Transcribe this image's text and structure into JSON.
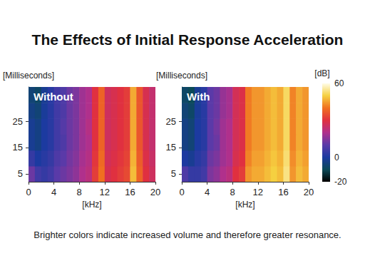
{
  "title": "The Effects of Initial Response Acceleration",
  "caption": "Brighter colors indicate increased volume and therefore greater resonance.",
  "colorbar": {
    "label": "[dB]",
    "range": [
      -20,
      60
    ],
    "ticks": [
      -20,
      0,
      60
    ]
  },
  "chart_data": [
    {
      "type": "heatmap",
      "annotation": "Without",
      "xlabel": "[kHz]",
      "ylabel": "[Milliseconds]",
      "xlim": [
        0,
        20
      ],
      "xticks": [
        0,
        4,
        8,
        12,
        16,
        20
      ],
      "ylim": [
        2,
        38
      ],
      "yticks": [
        5,
        15,
        25
      ],
      "x_edges": [
        0,
        1,
        2,
        3,
        4,
        5,
        6,
        7,
        8,
        9,
        10,
        11,
        12,
        13,
        14,
        15,
        16,
        17,
        18,
        19,
        20
      ],
      "y_edges": [
        2,
        8,
        14,
        20,
        26,
        32,
        38
      ],
      "cells": [
        [
          12,
          6,
          4,
          6,
          10,
          12,
          14,
          16,
          20,
          22,
          32,
          40,
          28,
          30,
          32,
          34,
          48,
          38,
          30,
          26
        ],
        [
          4,
          0,
          2,
          4,
          8,
          10,
          13,
          15,
          19,
          21,
          31,
          39,
          27,
          29,
          31,
          33,
          47,
          37,
          29,
          25
        ],
        [
          -2,
          -4,
          0,
          2,
          6,
          8,
          12,
          14,
          18,
          20,
          30,
          38,
          26,
          28,
          30,
          32,
          46,
          36,
          28,
          24
        ],
        [
          -2,
          -4,
          0,
          2,
          6,
          9,
          12,
          14,
          18,
          21,
          30,
          38,
          26,
          28,
          30,
          32,
          46,
          36,
          28,
          24
        ],
        [
          -4,
          -6,
          -1,
          2,
          6,
          8,
          12,
          14,
          18,
          20,
          30,
          38,
          26,
          28,
          30,
          32,
          46,
          36,
          28,
          24
        ],
        [
          -6,
          -8,
          -2,
          2,
          6,
          8,
          12,
          14,
          18,
          20,
          30,
          38,
          26,
          28,
          30,
          32,
          46,
          36,
          28,
          24
        ]
      ]
    },
    {
      "type": "heatmap",
      "annotation": "With",
      "xlabel": "[kHz]",
      "ylabel": "[Milliseconds]",
      "xlim": [
        0,
        20
      ],
      "xticks": [
        0,
        4,
        8,
        12,
        16,
        20
      ],
      "ylim": [
        2,
        38
      ],
      "yticks": [
        5,
        15,
        25
      ],
      "x_edges": [
        0,
        1,
        2,
        3,
        4,
        5,
        6,
        7,
        8,
        9,
        10,
        11,
        12,
        13,
        14,
        15,
        16,
        17,
        18,
        19,
        20
      ],
      "y_edges": [
        2,
        8,
        14,
        20,
        26,
        32,
        38
      ],
      "cells": [
        [
          8,
          4,
          4,
          6,
          14,
          16,
          20,
          22,
          30,
          32,
          44,
          46,
          46,
          48,
          50,
          48,
          54,
          44,
          48,
          46
        ],
        [
          0,
          -2,
          2,
          4,
          12,
          14,
          18,
          20,
          28,
          30,
          42,
          45,
          45,
          47,
          49,
          47,
          53,
          43,
          47,
          45
        ],
        [
          -4,
          -6,
          0,
          2,
          10,
          12,
          18,
          20,
          27,
          29,
          41,
          44,
          44,
          46,
          48,
          46,
          52,
          42,
          46,
          44
        ],
        [
          -4,
          -6,
          0,
          2,
          10,
          13,
          18,
          20,
          27,
          29,
          41,
          44,
          44,
          46,
          48,
          46,
          52,
          42,
          46,
          44
        ],
        [
          -6,
          -8,
          -1,
          2,
          10,
          12,
          17,
          19,
          27,
          29,
          41,
          44,
          44,
          46,
          48,
          46,
          52,
          42,
          46,
          44
        ],
        [
          -8,
          -10,
          -2,
          2,
          10,
          12,
          17,
          19,
          27,
          29,
          41,
          44,
          44,
          46,
          48,
          46,
          52,
          42,
          46,
          44
        ]
      ]
    }
  ]
}
